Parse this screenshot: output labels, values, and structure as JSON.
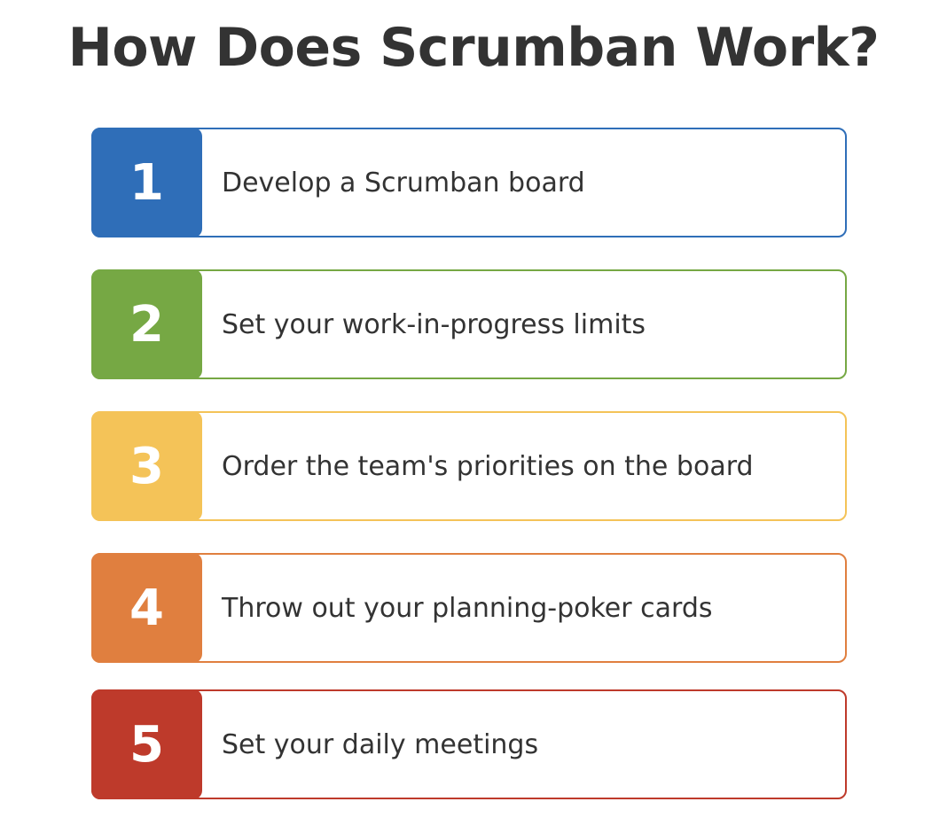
{
  "title": "How Does Scrumban Work?",
  "steps": [
    {
      "number": "1",
      "label": "Develop a Scrumban board",
      "color": "#2f6eb8"
    },
    {
      "number": "2",
      "label": "Set your work-in-progress limits",
      "color": "#76a844"
    },
    {
      "number": "3",
      "label": "Order the team's priorities on the board",
      "color": "#f4c358"
    },
    {
      "number": "4",
      "label": "Throw out your planning-poker cards",
      "color": "#e07f3f"
    },
    {
      "number": "5",
      "label": "Set your daily meetings",
      "color": "#be3a2b"
    }
  ]
}
